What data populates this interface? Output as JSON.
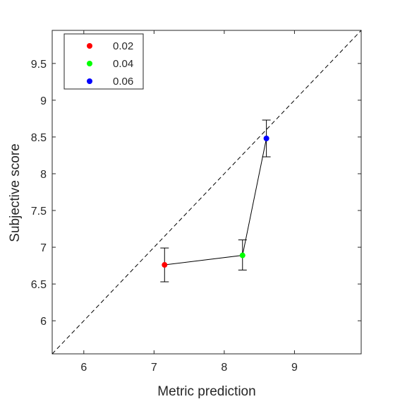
{
  "chart_data": {
    "type": "scatter",
    "xlabel": "Metric prediction",
    "ylabel": "Subjective score",
    "xlim": [
      5.55,
      9.95
    ],
    "ylim": [
      5.55,
      9.95
    ],
    "x_ticks": [
      6,
      7,
      8,
      9
    ],
    "y_ticks": [
      6,
      6.5,
      7,
      7.5,
      8,
      8.5,
      9,
      9.5
    ],
    "x_tick_labels": [
      "6",
      "7",
      "8",
      "9"
    ],
    "y_tick_labels": [
      "6",
      "6.5",
      "7",
      "7.5",
      "8",
      "8.5",
      "9",
      "9.5"
    ],
    "grid": false,
    "legend_position": "top-left",
    "reference_line": "y = x (dashed)",
    "connecting_line": true,
    "series": [
      {
        "name": "0.02",
        "color": "#ff0000",
        "x": 7.15,
        "y": 6.76,
        "err_low": 6.53,
        "err_high": 6.99
      },
      {
        "name": "0.04",
        "color": "#00ff00",
        "x": 8.26,
        "y": 6.89,
        "err_low": 6.69,
        "err_high": 7.1
      },
      {
        "name": "0.06",
        "color": "#0000ff",
        "x": 8.6,
        "y": 8.48,
        "err_low": 8.23,
        "err_high": 8.73
      }
    ]
  }
}
